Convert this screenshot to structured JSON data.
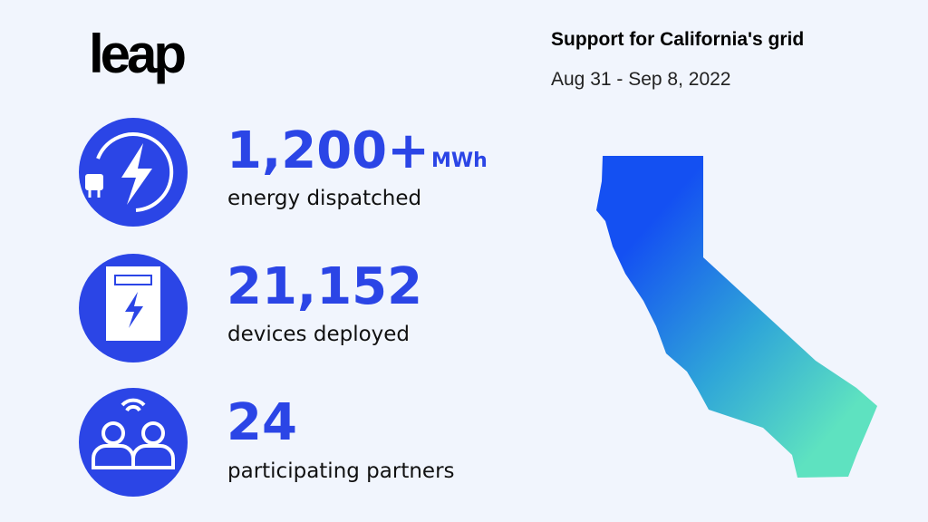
{
  "logo": "leap",
  "header": {
    "title": "Support for California's grid",
    "date": "Aug 31 - Sep 8, 2022"
  },
  "stats": [
    {
      "value": "1,200+",
      "unit": "MWh",
      "label": "energy dispatched"
    },
    {
      "value": "21,152",
      "label": "devices deployed"
    },
    {
      "value": "24",
      "label": "participating partners"
    }
  ]
}
